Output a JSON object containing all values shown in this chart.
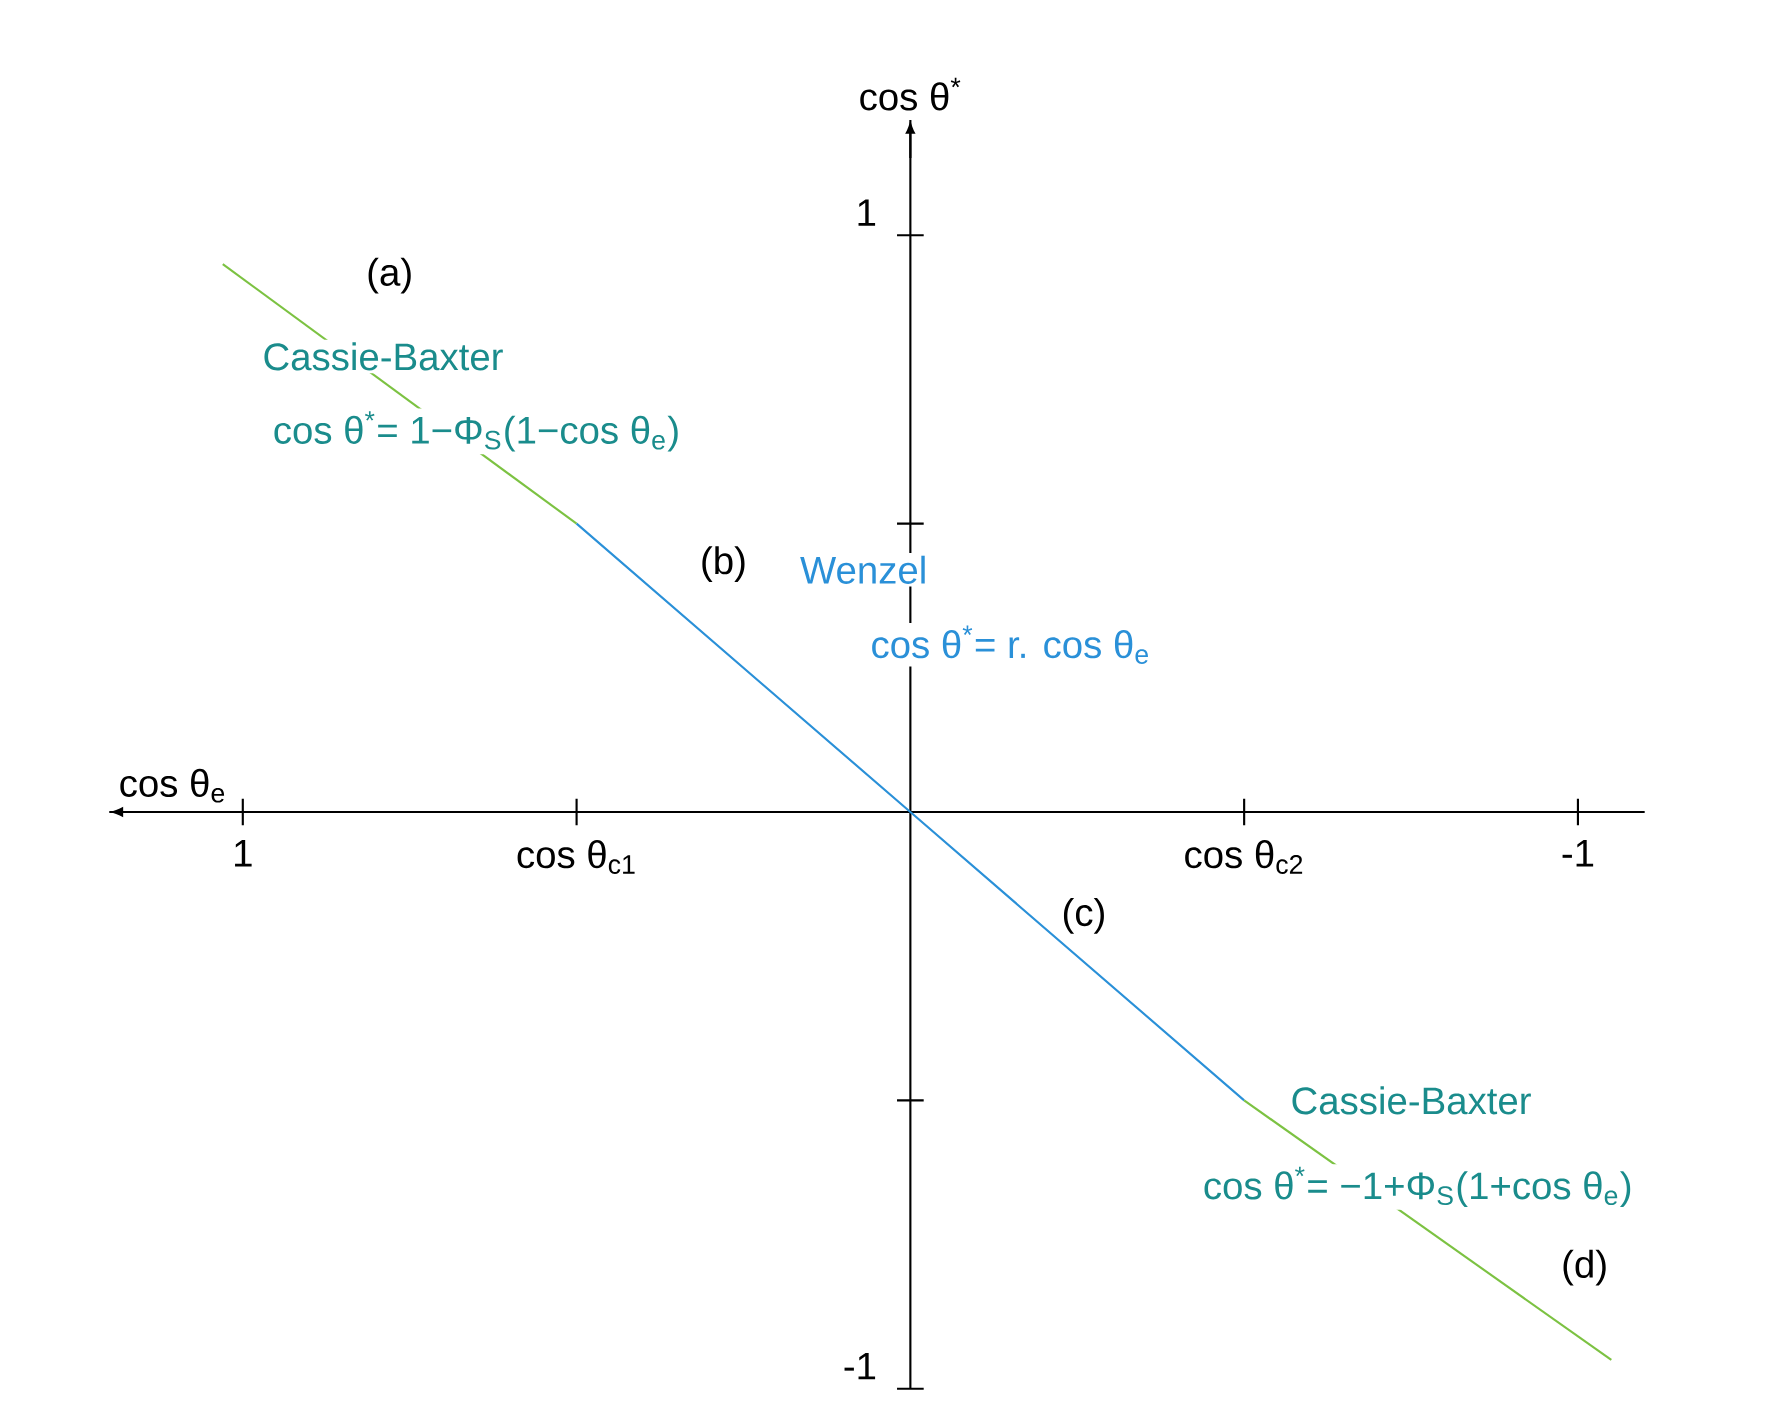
{
  "chart_data": {
    "type": "line",
    "xlabel": "cos θ$_{e}$",
    "ylabel": "cos θ$^{*}$",
    "xlim": [
      1.2,
      -1.1
    ],
    "ylim": [
      -1.0,
      1.2
    ],
    "xticks": [
      1,
      {
        "value": 0.5,
        "label": "cos θ$_{c1}$"
      },
      {
        "value": -0.5,
        "label": "cos θ$_{c2}$"
      },
      -1
    ],
    "yticks": [
      1,
      {
        "value": 0.5,
        "label": null
      },
      {
        "value": -0.5,
        "label": null
      },
      -1
    ],
    "grid": false,
    "line_style": "solid",
    "series": [
      {
        "color": "#7cc242",
        "x": [
          1.03,
          0.5
        ],
        "values": [
          0.95,
          0.5
        ]
      },
      {
        "color": "#2a90d8",
        "x": [
          0.5,
          0,
          -0.5
        ],
        "values": [
          0.5,
          0,
          -0.5
        ]
      },
      {
        "color": "#7cc242",
        "x": [
          -0.5,
          -1.05
        ],
        "values": [
          -0.5,
          -0.95
        ]
      }
    ],
    "annotations": [
      "(a)",
      "Cassie-Baxter",
      "cos θ$^{*}$= 1−Φ$_{S}$(1−cos θ$_{e}$)",
      "(b)",
      "Wenzel",
      "cos θ$^{*}$= r. cos θ$_{e}$",
      "(c)",
      "Cassie-Baxter",
      "cos θ$^{*}$= −1+Φ$_{S}$(1+cos θ$_{e}$)",
      "(d)"
    ]
  }
}
